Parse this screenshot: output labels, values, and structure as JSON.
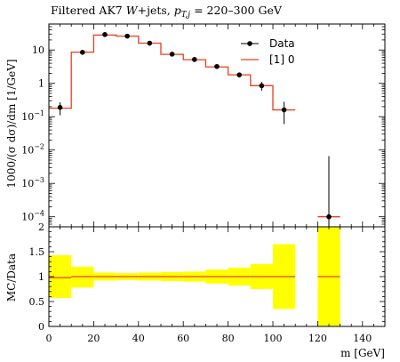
{
  "chart_data": [
    {
      "type": "line",
      "title": "Filtered AK7 W+jets, p_{T,j} = 220–300 GeV",
      "title_parts": {
        "prefix": "Filtered AK7 ",
        "w_symbol": "W",
        "mid": "+jets, ",
        "p_symbol": "p",
        "p_sub": "T,j",
        "suffix": " = 220–300 GeV"
      },
      "ylabel": "1000/(σ dσ)/dm [1/GeV]",
      "xlim": [
        0,
        150
      ],
      "ylim": [
        5e-05,
        60
      ],
      "yscale": "log",
      "y_ticks": [
        {
          "value": 10,
          "label": "10"
        },
        {
          "value": 1,
          "label": "1"
        },
        {
          "value": 0.1,
          "label": "10^-1"
        },
        {
          "value": 0.01,
          "label": "10^-2"
        },
        {
          "value": 0.001,
          "label": "10^-3"
        },
        {
          "value": 0.0001,
          "label": "10^-4"
        }
      ],
      "series": [
        {
          "name": "Data",
          "kind": "points",
          "color": "#000000",
          "x": [
            5,
            15,
            25,
            35,
            45,
            55,
            65,
            75,
            85,
            95,
            105,
            125
          ],
          "y": [
            0.19,
            8.5,
            29,
            26,
            16,
            7.5,
            5.2,
            3.2,
            1.8,
            0.85,
            0.16,
            0.0001
          ],
          "yerr_low": [
            0.08,
            1.0,
            2.0,
            2.0,
            1.5,
            0.8,
            0.6,
            0.4,
            0.3,
            0.25,
            0.1,
            9e-05
          ],
          "yerr_high": [
            0.08,
            1.0,
            2.0,
            2.0,
            1.5,
            0.8,
            0.6,
            0.4,
            0.3,
            0.25,
            0.12,
            0.0065
          ]
        },
        {
          "name": "[1] 0",
          "kind": "histogram",
          "color": "#e8401c",
          "edges": [
            0,
            10,
            20,
            30,
            40,
            50,
            60,
            70,
            80,
            90,
            100,
            110,
            120,
            130
          ],
          "values": [
            0.18,
            8.6,
            28,
            26,
            16,
            7.4,
            5.1,
            3.1,
            1.8,
            0.85,
            0.16,
            null,
            0.0001
          ]
        }
      ],
      "legend": {
        "position": "top-right"
      }
    },
    {
      "type": "area",
      "ylabel": "MC/Data",
      "xlabel": "m [GeV]",
      "xlim": [
        0,
        150
      ],
      "ylim": [
        0,
        2
      ],
      "x_ticks": [
        0,
        20,
        40,
        60,
        80,
        100,
        120,
        140
      ],
      "y_ticks": [
        {
          "value": 0.5,
          "label": "0.5"
        },
        {
          "value": 1,
          "label": "1"
        },
        {
          "value": 1.5,
          "label": "1.5"
        },
        {
          "value": 2,
          "label": "2"
        }
      ],
      "band_color": "#ffff00",
      "line_color": "#e8401c",
      "bins": [
        {
          "lo": 0,
          "hi": 10,
          "ratio": 0.98,
          "band": [
            0.57,
            1.43
          ]
        },
        {
          "lo": 10,
          "hi": 20,
          "ratio": 1.0,
          "band": [
            0.78,
            1.2
          ]
        },
        {
          "lo": 20,
          "hi": 30,
          "ratio": 1.0,
          "band": [
            0.92,
            1.08
          ]
        },
        {
          "lo": 30,
          "hi": 40,
          "ratio": 1.0,
          "band": [
            0.93,
            1.07
          ]
        },
        {
          "lo": 40,
          "hi": 50,
          "ratio": 1.0,
          "band": [
            0.92,
            1.08
          ]
        },
        {
          "lo": 50,
          "hi": 60,
          "ratio": 1.0,
          "band": [
            0.91,
            1.09
          ]
        },
        {
          "lo": 60,
          "hi": 70,
          "ratio": 1.0,
          "band": [
            0.9,
            1.1
          ]
        },
        {
          "lo": 70,
          "hi": 80,
          "ratio": 1.0,
          "band": [
            0.86,
            1.14
          ]
        },
        {
          "lo": 80,
          "hi": 90,
          "ratio": 1.0,
          "band": [
            0.82,
            1.18
          ]
        },
        {
          "lo": 90,
          "hi": 100,
          "ratio": 1.0,
          "band": [
            0.75,
            1.25
          ]
        },
        {
          "lo": 100,
          "hi": 110,
          "ratio": 1.0,
          "band": [
            0.35,
            1.65
          ]
        },
        {
          "lo": 120,
          "hi": 130,
          "ratio": 1.0,
          "band": [
            0,
            2
          ]
        }
      ]
    }
  ]
}
